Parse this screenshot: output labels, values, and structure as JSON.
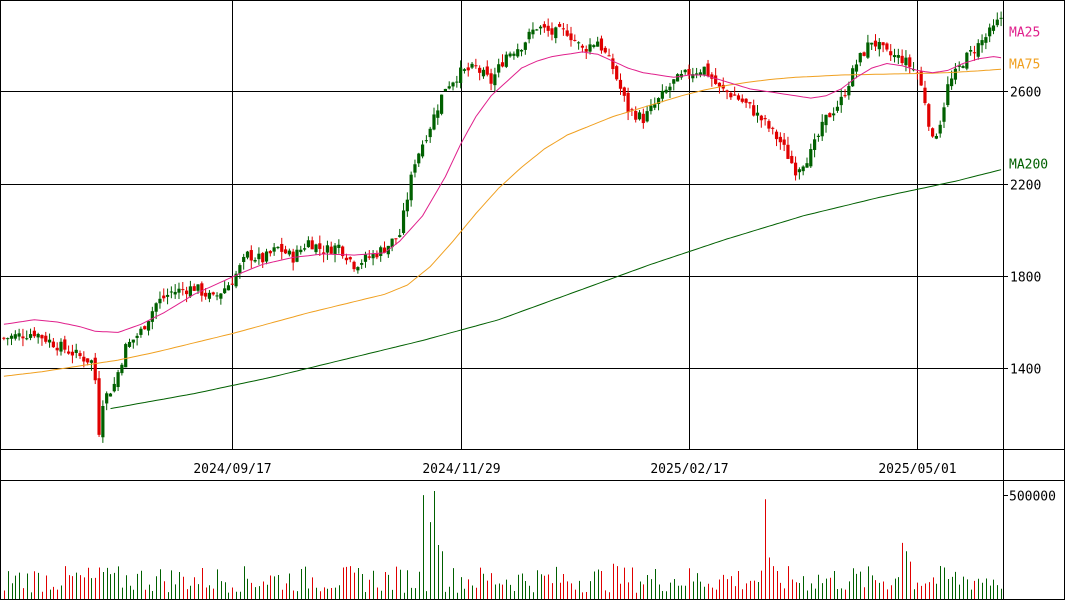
{
  "chart_data": {
    "type": "candlestick",
    "price": {
      "y_ticks": [
        1400,
        1800,
        2200,
        2600
      ],
      "y_tick_labels": [
        "1400",
        "1800",
        "2200",
        "2600"
      ],
      "ylim": [
        1050,
        2995
      ],
      "grid": true
    },
    "x_tick_labels": [
      "2024/09/17",
      "2024/11/29",
      "2025/02/17",
      "2025/05/01"
    ],
    "volume": {
      "y_tick_label": "500000",
      "ylim": [
        0,
        520000
      ],
      "max_tick": 500000
    },
    "moving_averages": [
      {
        "name": "MA25",
        "color": "#e0208c"
      },
      {
        "name": "MA75",
        "color": "#f0a020"
      },
      {
        "name": "MA200",
        "color": "#006000"
      }
    ],
    "colors": {
      "up": "#006000",
      "down": "#e00000",
      "grid": "#000000"
    },
    "anchors": [
      [
        0,
        1530
      ],
      [
        8,
        1555
      ],
      [
        14,
        1500
      ],
      [
        20,
        1450
      ],
      [
        23,
        1430
      ],
      [
        24,
        1350
      ],
      [
        25,
        1130
      ],
      [
        26,
        1260
      ],
      [
        29,
        1330
      ],
      [
        32,
        1490
      ],
      [
        36,
        1560
      ],
      [
        40,
        1680
      ],
      [
        44,
        1730
      ],
      [
        50,
        1750
      ],
      [
        55,
        1700
      ],
      [
        60,
        1780
      ],
      [
        64,
        1890
      ],
      [
        68,
        1870
      ],
      [
        72,
        1920
      ],
      [
        76,
        1880
      ],
      [
        80,
        1950
      ],
      [
        84,
        1910
      ],
      [
        88,
        1930
      ],
      [
        92,
        1850
      ],
      [
        96,
        1880
      ],
      [
        100,
        1920
      ],
      [
        104,
        1980
      ],
      [
        108,
        2300
      ],
      [
        112,
        2450
      ],
      [
        116,
        2620
      ],
      [
        120,
        2680
      ],
      [
        124,
        2700
      ],
      [
        128,
        2640
      ],
      [
        132,
        2760
      ],
      [
        136,
        2800
      ],
      [
        140,
        2880
      ],
      [
        144,
        2850
      ],
      [
        148,
        2860
      ],
      [
        152,
        2780
      ],
      [
        156,
        2820
      ],
      [
        160,
        2700
      ],
      [
        164,
        2520
      ],
      [
        168,
        2480
      ],
      [
        172,
        2560
      ],
      [
        176,
        2640
      ],
      [
        180,
        2680
      ],
      [
        184,
        2700
      ],
      [
        188,
        2610
      ],
      [
        192,
        2580
      ],
      [
        196,
        2530
      ],
      [
        200,
        2460
      ],
      [
        204,
        2380
      ],
      [
        206,
        2320
      ],
      [
        208,
        2260
      ],
      [
        212,
        2330
      ],
      [
        216,
        2480
      ],
      [
        220,
        2560
      ],
      [
        224,
        2720
      ],
      [
        228,
        2820
      ],
      [
        232,
        2760
      ],
      [
        236,
        2740
      ],
      [
        240,
        2680
      ],
      [
        242,
        2560
      ],
      [
        244,
        2380
      ],
      [
        246,
        2470
      ],
      [
        248,
        2620
      ],
      [
        252,
        2730
      ],
      [
        256,
        2800
      ],
      [
        260,
        2870
      ],
      [
        262,
        2920
      ]
    ],
    "ma25_anchors": [
      [
        0,
        1590
      ],
      [
        8,
        1610
      ],
      [
        14,
        1600
      ],
      [
        20,
        1580
      ],
      [
        24,
        1560
      ],
      [
        30,
        1555
      ],
      [
        36,
        1590
      ],
      [
        42,
        1640
      ],
      [
        50,
        1720
      ],
      [
        56,
        1765
      ],
      [
        62,
        1810
      ],
      [
        68,
        1850
      ],
      [
        76,
        1880
      ],
      [
        84,
        1895
      ],
      [
        92,
        1890
      ],
      [
        100,
        1900
      ],
      [
        104,
        1950
      ],
      [
        110,
        2060
      ],
      [
        116,
        2230
      ],
      [
        120,
        2370
      ],
      [
        124,
        2490
      ],
      [
        128,
        2580
      ],
      [
        132,
        2640
      ],
      [
        136,
        2700
      ],
      [
        140,
        2730
      ],
      [
        144,
        2750
      ],
      [
        148,
        2760
      ],
      [
        152,
        2770
      ],
      [
        156,
        2760
      ],
      [
        160,
        2730
      ],
      [
        164,
        2700
      ],
      [
        168,
        2680
      ],
      [
        172,
        2670
      ],
      [
        176,
        2660
      ],
      [
        180,
        2670
      ],
      [
        184,
        2670
      ],
      [
        188,
        2650
      ],
      [
        192,
        2630
      ],
      [
        196,
        2610
      ],
      [
        200,
        2600
      ],
      [
        204,
        2590
      ],
      [
        208,
        2580
      ],
      [
        212,
        2570
      ],
      [
        216,
        2580
      ],
      [
        220,
        2610
      ],
      [
        224,
        2660
      ],
      [
        228,
        2700
      ],
      [
        232,
        2720
      ],
      [
        236,
        2710
      ],
      [
        240,
        2690
      ],
      [
        244,
        2680
      ],
      [
        248,
        2690
      ],
      [
        252,
        2720
      ],
      [
        256,
        2740
      ],
      [
        260,
        2750
      ],
      [
        262,
        2745
      ]
    ],
    "ma75_anchors": [
      [
        0,
        1365
      ],
      [
        10,
        1385
      ],
      [
        20,
        1410
      ],
      [
        30,
        1435
      ],
      [
        40,
        1470
      ],
      [
        50,
        1510
      ],
      [
        60,
        1550
      ],
      [
        70,
        1595
      ],
      [
        80,
        1640
      ],
      [
        90,
        1680
      ],
      [
        100,
        1720
      ],
      [
        106,
        1760
      ],
      [
        112,
        1840
      ],
      [
        118,
        1950
      ],
      [
        124,
        2070
      ],
      [
        130,
        2180
      ],
      [
        136,
        2270
      ],
      [
        142,
        2350
      ],
      [
        148,
        2410
      ],
      [
        154,
        2450
      ],
      [
        160,
        2490
      ],
      [
        166,
        2520
      ],
      [
        172,
        2550
      ],
      [
        178,
        2580
      ],
      [
        184,
        2605
      ],
      [
        190,
        2625
      ],
      [
        196,
        2640
      ],
      [
        202,
        2652
      ],
      [
        208,
        2660
      ],
      [
        214,
        2665
      ],
      [
        220,
        2670
      ],
      [
        226,
        2672
      ],
      [
        232,
        2674
      ],
      [
        238,
        2676
      ],
      [
        244,
        2678
      ],
      [
        250,
        2682
      ],
      [
        256,
        2688
      ],
      [
        262,
        2695
      ]
    ],
    "ma200_anchors": [
      [
        28,
        1225
      ],
      [
        50,
        1290
      ],
      [
        70,
        1360
      ],
      [
        90,
        1440
      ],
      [
        110,
        1520
      ],
      [
        130,
        1610
      ],
      [
        150,
        1730
      ],
      [
        170,
        1850
      ],
      [
        190,
        1960
      ],
      [
        210,
        2060
      ],
      [
        230,
        2140
      ],
      [
        250,
        2210
      ],
      [
        262,
        2260
      ]
    ],
    "volume_spikes": [
      [
        27,
        150000
      ],
      [
        28,
        120000
      ],
      [
        26,
        130000
      ],
      [
        110,
        500000
      ],
      [
        112,
        370000
      ],
      [
        113,
        520000
      ],
      [
        114,
        260000
      ],
      [
        115,
        230000
      ],
      [
        200,
        480000
      ],
      [
        201,
        200000
      ],
      [
        160,
        170000
      ],
      [
        236,
        270000
      ],
      [
        237,
        230000
      ],
      [
        238,
        180000
      ]
    ]
  }
}
